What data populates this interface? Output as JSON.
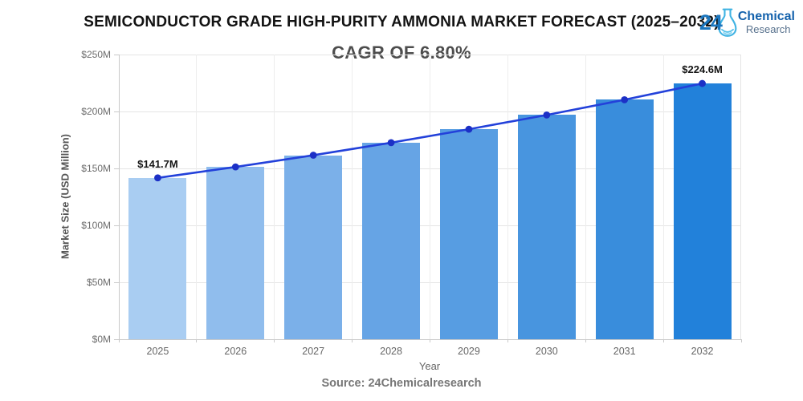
{
  "header": {
    "title": "SEMICONDUCTOR GRADE HIGH-PURITY AMMONIA MARKET FORECAST (2025–2032)",
    "subtitle": "CAGR OF 6.80%"
  },
  "logo": {
    "number": "24",
    "line1": "Chemical",
    "line2": "Research"
  },
  "chart_data": {
    "type": "bar",
    "title": "SEMICONDUCTOR GRADE HIGH-PURITY AMMONIA MARKET FORECAST (2025–2032)",
    "subtitle": "CAGR OF 6.80%",
    "categories": [
      "2025",
      "2026",
      "2027",
      "2028",
      "2029",
      "2030",
      "2031",
      "2032"
    ],
    "values": [
      141.7,
      151.3,
      161.6,
      172.6,
      184.4,
      196.9,
      210.3,
      224.6
    ],
    "overlay_line": {
      "present": true,
      "follows": "values"
    },
    "data_labels": {
      "0": "$141.7M",
      "7": "$224.6M"
    },
    "xlabel": "Year",
    "ylabel": "Market Size (USD Million)",
    "ylim": [
      0,
      250
    ],
    "y_ticks": [
      {
        "value": 0,
        "label": "$0M"
      },
      {
        "value": 50,
        "label": "$50M"
      },
      {
        "value": 100,
        "label": "$100M"
      },
      {
        "value": 150,
        "label": "$150M"
      },
      {
        "value": 200,
        "label": "$200M"
      },
      {
        "value": 250,
        "label": "$250M"
      }
    ],
    "grid": "on",
    "legend": "none",
    "bar_colors": [
      "#a9cdf2",
      "#90bded",
      "#7bb0e9",
      "#66a4e5",
      "#579de2",
      "#4895df",
      "#398ddc",
      "#2281da"
    ],
    "line_color": "#2341da",
    "marker_color": "#1c30c6",
    "grid_color": "#e4e4e4",
    "vgrid_color": "#ededed",
    "axis_color": "#c9c9c9"
  },
  "footer": {
    "source": "Source: 24Chemicalresearch"
  }
}
